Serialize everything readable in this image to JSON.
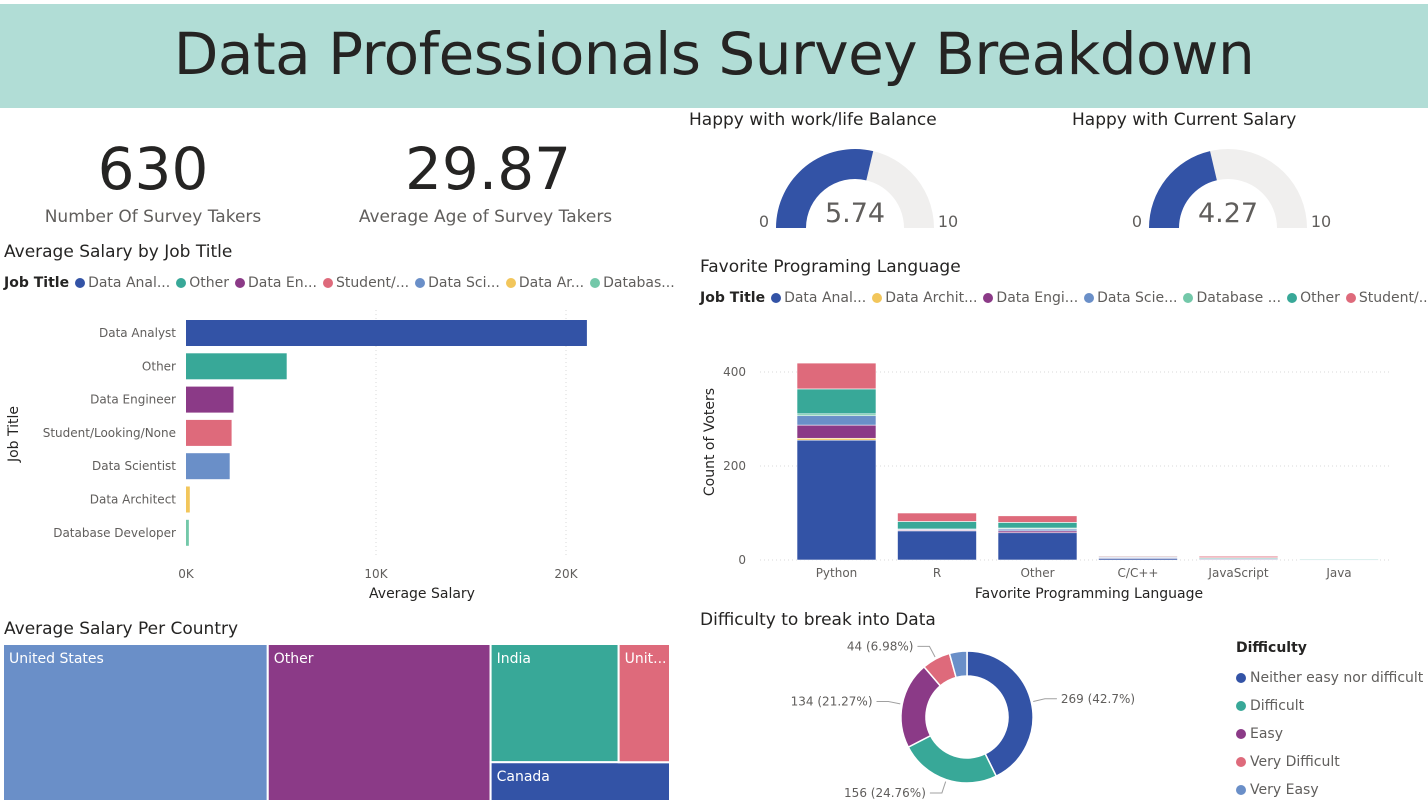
{
  "header": {
    "title": "Data Professionals Survey Breakdown"
  },
  "kpis": [
    {
      "value": "630",
      "label": "Number Of Survey Takers"
    },
    {
      "value": "29.87",
      "label": "Average Age of Survey Takers"
    }
  ],
  "colors": {
    "banner": "#b1ddd6",
    "data_analyst": "#3353a6",
    "other": "#38a898",
    "data_engineer": "#8b3a87",
    "student": "#de6a7b",
    "data_scientist": "#6a8fc8",
    "data_architect": "#f2c65b",
    "database_developer": "#73c8a9",
    "gauge_track": "#f0efee"
  },
  "gauges": [
    {
      "title": "Happy with work/life Balance",
      "value": 5.74,
      "value_label": "5.74",
      "min": 0,
      "max": 10,
      "min_label": "0",
      "max_label": "10"
    },
    {
      "title": "Happy with Current Salary",
      "value": 4.27,
      "value_label": "4.27",
      "min": 0,
      "max": 10,
      "min_label": "0",
      "max_label": "10"
    }
  ],
  "salary_by_job": {
    "title": "Average Salary by Job Title",
    "legend_title": "Job Title",
    "legend": [
      {
        "label": "Data Anal...",
        "color": "#3353a6"
      },
      {
        "label": "Other",
        "color": "#38a898"
      },
      {
        "label": "Data En...",
        "color": "#8b3a87"
      },
      {
        "label": "Student/...",
        "color": "#de6a7b"
      },
      {
        "label": "Data Sci...",
        "color": "#6a8fc8"
      },
      {
        "label": "Data Ar...",
        "color": "#f2c65b"
      },
      {
        "label": "Databas...",
        "color": "#73c8a9"
      }
    ]
  },
  "language": {
    "title": "Favorite Programing Language",
    "legend_title": "Job Title",
    "legend": [
      {
        "label": "Data Anal...",
        "color": "#3353a6"
      },
      {
        "label": "Data Archit...",
        "color": "#f2c65b"
      },
      {
        "label": "Data Engi...",
        "color": "#8b3a87"
      },
      {
        "label": "Data Scie...",
        "color": "#6a8fc8"
      },
      {
        "label": "Database ...",
        "color": "#73c8a9"
      },
      {
        "label": "Other",
        "color": "#38a898"
      },
      {
        "label": "Student/...",
        "color": "#de6a7b"
      }
    ]
  },
  "country": {
    "title": "Average Salary Per Country"
  },
  "difficulty": {
    "title": "Difficulty to break into Data",
    "legend_title": "Difficulty"
  },
  "chart_data": [
    {
      "type": "bar",
      "orientation": "horizontal",
      "title": "Average Salary by Job Title",
      "xlabel": "Average Salary",
      "ylabel": "Job Title",
      "categories": [
        "Data Analyst",
        "Other",
        "Data Engineer",
        "Student/Looking/None",
        "Data Scientist",
        "Data Architect",
        "Database Developer"
      ],
      "values": [
        21100,
        5300,
        2500,
        2400,
        2300,
        200,
        150
      ],
      "colors": [
        "#3353a6",
        "#38a898",
        "#8b3a87",
        "#de6a7b",
        "#6a8fc8",
        "#f2c65b",
        "#73c8a9"
      ],
      "xlim": [
        0,
        25000
      ],
      "xticks": [
        0,
        10000,
        20000
      ],
      "xtick_labels": [
        "0K",
        "10K",
        "20K"
      ],
      "grid": true
    },
    {
      "type": "bar",
      "stacked": true,
      "title": "Favorite Programing Language",
      "xlabel": "Favorite Programming Language",
      "ylabel": "Count of Voters",
      "categories": [
        "Python",
        "R",
        "Other",
        "C/C++",
        "JavaScript",
        "Java"
      ],
      "ylim": [
        0,
        440
      ],
      "yticks": [
        0,
        200,
        400
      ],
      "series": [
        {
          "name": "Data Analyst",
          "color": "#3353a6",
          "values": [
            255,
            62,
            58,
            4,
            2,
            1
          ]
        },
        {
          "name": "Data Architect",
          "color": "#f2c65b",
          "values": [
            4,
            0,
            0,
            0,
            0,
            0
          ]
        },
        {
          "name": "Data Engineer",
          "color": "#8b3a87",
          "values": [
            28,
            2,
            4,
            1,
            1,
            0
          ]
        },
        {
          "name": "Data Scientist",
          "color": "#6a8fc8",
          "values": [
            20,
            2,
            4,
            1,
            0,
            0
          ]
        },
        {
          "name": "Database Developer",
          "color": "#73c8a9",
          "values": [
            4,
            0,
            2,
            0,
            0,
            0
          ]
        },
        {
          "name": "Other",
          "color": "#38a898",
          "values": [
            53,
            16,
            12,
            2,
            2,
            1
          ]
        },
        {
          "name": "Student/Looking/None",
          "color": "#de6a7b",
          "values": [
            55,
            18,
            14,
            1,
            3,
            0
          ]
        }
      ],
      "grid": true
    },
    {
      "type": "treemap",
      "title": "Average Salary Per Country",
      "items": [
        {
          "label": "United States",
          "value": 33.5,
          "color": "#6a8fc8"
        },
        {
          "label": "Other",
          "value": 28.2,
          "color": "#8b3a87"
        },
        {
          "label": "India",
          "value": 12.2,
          "color": "#38a898"
        },
        {
          "label": "Canada",
          "value": 4.0,
          "color": "#3353a6"
        },
        {
          "label": "Unit...",
          "value": 6.5,
          "color": "#de6a7b"
        }
      ]
    },
    {
      "type": "pie",
      "donut": true,
      "title": "Difficulty to break into Data",
      "legend_title": "Difficulty",
      "legend_position": "right",
      "slices": [
        {
          "label": "Neither easy nor difficult",
          "value": 269,
          "percent": 42.7,
          "data_label": "269 (42.7%)",
          "color": "#3353a6"
        },
        {
          "label": "Difficult",
          "value": 156,
          "percent": 24.76,
          "data_label": "156 (24.76%)",
          "color": "#38a898"
        },
        {
          "label": "Easy",
          "value": 134,
          "percent": 21.27,
          "data_label": "134 (21.27%)",
          "color": "#8b3a87"
        },
        {
          "label": "Very Difficult",
          "value": 44,
          "percent": 6.98,
          "data_label": "44 (6.98%)",
          "color": "#de6a7b"
        },
        {
          "label": "Very Easy",
          "value": 27,
          "percent": 4.29,
          "data_label": "",
          "color": "#6a8fc8"
        }
      ]
    }
  ]
}
